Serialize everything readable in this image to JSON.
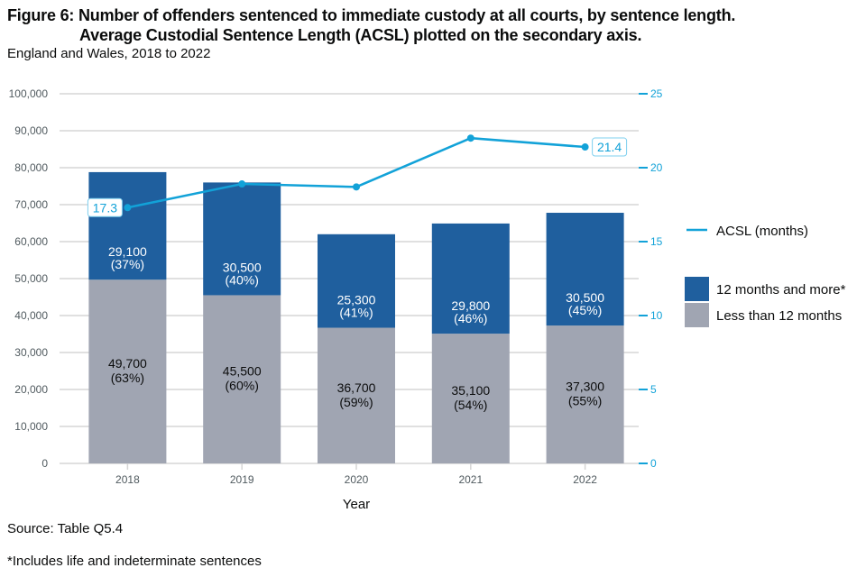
{
  "chart_data": {
    "type": "bar",
    "title_line1": "Figure 6: Number of offenders sentenced to immediate custody at all courts, by sentence length.",
    "title_line2": "Average Custodial Sentence Length (ACSL) plotted on the secondary axis.",
    "subtitle": "England and Wales, 2018 to 2022",
    "xlabel": "Year",
    "ylabel": "",
    "y2label": "",
    "categories": [
      "2018",
      "2019",
      "2020",
      "2021",
      "2022"
    ],
    "ylim": [
      0,
      100000
    ],
    "yticks": [
      0,
      10000,
      20000,
      30000,
      40000,
      50000,
      60000,
      70000,
      80000,
      90000,
      100000
    ],
    "ytick_labels": [
      "0",
      "10,000",
      "20,000",
      "30,000",
      "40,000",
      "50,000",
      "60,000",
      "70,000",
      "80,000",
      "90,000",
      "100,000"
    ],
    "y2lim": [
      0,
      25
    ],
    "y2ticks": [
      0,
      5,
      10,
      15,
      20,
      25
    ],
    "y2tick_labels": [
      "0",
      "5",
      "10",
      "15",
      "20",
      "25"
    ],
    "grid": true,
    "stacked": true,
    "series": [
      {
        "name": "Less than 12 months",
        "kind": "bar",
        "color": "#a0a5b2",
        "values": [
          49700,
          45500,
          36700,
          35100,
          37300
        ],
        "labels": [
          "49,700",
          "45,500",
          "36,700",
          "35,100",
          "37,300"
        ],
        "pct_labels": [
          "(63%)",
          "(60%)",
          "(59%)",
          "(54%)",
          "(55%)"
        ]
      },
      {
        "name": "12 months and more*",
        "kind": "bar",
        "color": "#1f5f9e",
        "values": [
          29100,
          30500,
          25300,
          29800,
          30500
        ],
        "labels": [
          "29,100",
          "30,500",
          "25,300",
          "29,800",
          "30,500"
        ],
        "pct_labels": [
          "(37%)",
          "(40%)",
          "(41%)",
          "(46%)",
          "(45%)"
        ]
      },
      {
        "name": "ACSL (months)",
        "kind": "line",
        "axis": "secondary",
        "color": "#12a2d8",
        "values": [
          17.3,
          18.9,
          18.7,
          22.0,
          21.4
        ],
        "callouts": [
          {
            "index": 0,
            "text": "17.3"
          },
          {
            "index": 4,
            "text": "21.4"
          }
        ]
      }
    ],
    "legend": {
      "placement": "right",
      "items": [
        {
          "label": "ACSL (months)",
          "type": "line",
          "color": "#12a2d8"
        },
        {
          "label": "12 months and more*",
          "type": "box",
          "color": "#1f5f9e"
        },
        {
          "label": "Less than 12 months",
          "type": "box",
          "color": "#a0a5b2"
        }
      ]
    }
  },
  "source": "Source: Table Q5.4",
  "footnote": "*Includes life and indeterminate sentences"
}
